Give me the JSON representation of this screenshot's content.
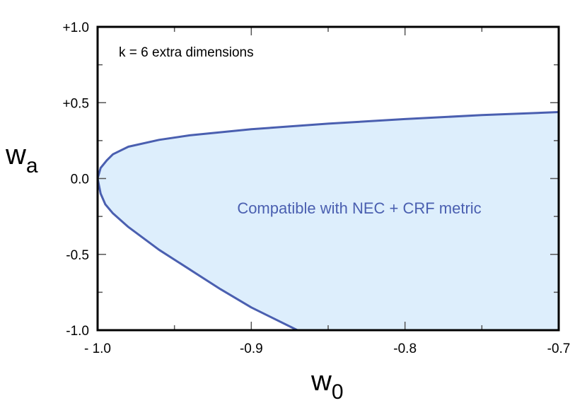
{
  "chart_data": {
    "type": "area",
    "title": "",
    "xlabel": {
      "main": "w",
      "sub": "0"
    },
    "ylabel": {
      "main": "w",
      "sub": "a"
    },
    "xlim": [
      -1.0,
      -0.7
    ],
    "ylim": [
      -1.0,
      1.0
    ],
    "x_ticks": [
      {
        "value": -1.0,
        "label": "- 1.0"
      },
      {
        "value": -0.9,
        "label": "-0.9"
      },
      {
        "value": -0.8,
        "label": "-0.8"
      },
      {
        "value": -0.7,
        "label": "-0.7"
      }
    ],
    "y_ticks": [
      {
        "value": 1.0,
        "label": "+1.0"
      },
      {
        "value": 0.5,
        "label": "+0.5"
      },
      {
        "value": 0.0,
        "label": "0.0"
      },
      {
        "value": -0.5,
        "label": "-0.5"
      },
      {
        "value": -1.0,
        "label": "-1.0"
      }
    ],
    "x_minor_ticks": [
      -0.95,
      -0.85,
      -0.75
    ],
    "y_minor_ticks": [
      0.75,
      0.25,
      -0.25,
      -0.75
    ],
    "annotation": "k = 6 extra dimensions",
    "region": {
      "label": "Compatible with NEC + CRF metric",
      "fill_color": "#ddeefc",
      "line_color": "#4a5fb0",
      "boundary_upper": {
        "x": [
          -1.0,
          -0.998,
          -0.994,
          -0.99,
          -0.98,
          -0.96,
          -0.94,
          -0.9,
          -0.85,
          -0.8,
          -0.75,
          -0.7
        ],
        "y": [
          0.0,
          0.07,
          0.12,
          0.16,
          0.21,
          0.255,
          0.285,
          0.325,
          0.362,
          0.392,
          0.418,
          0.438
        ]
      },
      "boundary_lower": {
        "x": [
          -1.0,
          -0.998,
          -0.995,
          -0.99,
          -0.98,
          -0.96,
          -0.94,
          -0.92,
          -0.9,
          -0.87
        ],
        "y": [
          0.0,
          -0.1,
          -0.17,
          -0.23,
          -0.32,
          -0.47,
          -0.6,
          -0.73,
          -0.85,
          -1.0
        ]
      }
    }
  }
}
